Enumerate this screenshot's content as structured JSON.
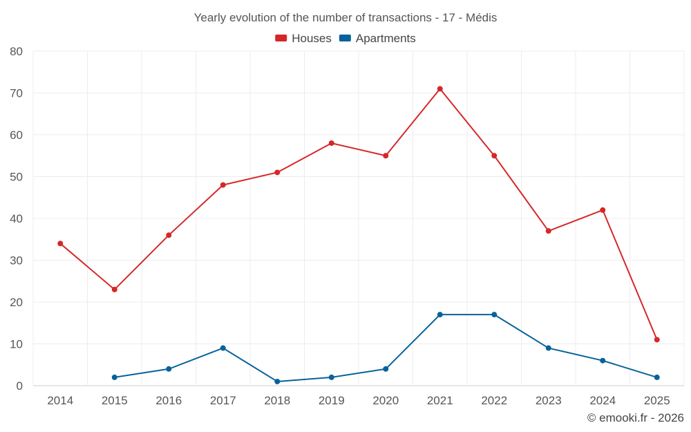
{
  "chart_data": {
    "type": "line",
    "title": "Yearly evolution of the number of transactions - 17 - Médis",
    "xlabel": "",
    "ylabel": "",
    "categories": [
      "2014",
      "2015",
      "2016",
      "2017",
      "2018",
      "2019",
      "2020",
      "2021",
      "2022",
      "2023",
      "2024",
      "2025"
    ],
    "ylim": [
      0,
      80
    ],
    "yticks": [
      0,
      10,
      20,
      30,
      40,
      50,
      60,
      70,
      80
    ],
    "grid": true,
    "legend_position": "top-center",
    "series": [
      {
        "name": "Houses",
        "color": "#d62728",
        "values": [
          34,
          23,
          36,
          48,
          51,
          58,
          55,
          71,
          55,
          37,
          42,
          11
        ]
      },
      {
        "name": "Apartments",
        "color": "#08629a",
        "values": [
          null,
          2,
          4,
          9,
          1,
          2,
          4,
          17,
          17,
          9,
          6,
          2
        ]
      }
    ]
  },
  "credit": "© emooki.fr - 2026"
}
